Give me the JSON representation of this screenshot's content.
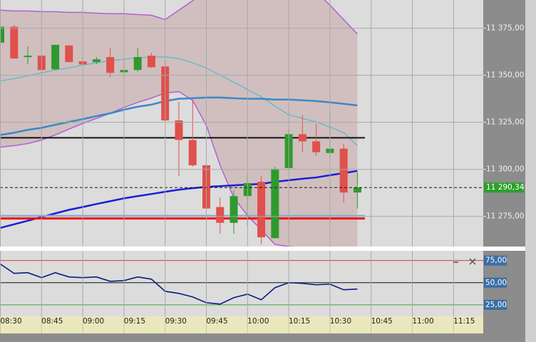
{
  "chart_data": [
    {
      "type": "candlestick",
      "xticks": [
        "08:30",
        "08:45",
        "09:00",
        "09:15",
        "09:30",
        "09:45",
        "10:00",
        "10:15",
        "10:30",
        "10:45",
        "11:00",
        "11:15"
      ],
      "open": [
        11367.3,
        11375.8,
        11359.7,
        11360.4,
        11353.2,
        11365.8,
        11357.4,
        11357.0,
        11359.7,
        11351.6,
        11352.8,
        11360.4,
        11354.7,
        11326.0,
        11315.6,
        11302.2,
        11280.0,
        11271.6,
        11285.8,
        11293.4,
        11263.5,
        11300.7,
        11318.7,
        11314.9,
        11308.7,
        11311.0,
        11287.7
      ],
      "high": [
        11376.9,
        11376.9,
        11365.4,
        11360.4,
        11366.2,
        11366.2,
        11359.7,
        11359.7,
        11364.3,
        11357.8,
        11364.3,
        11362.0,
        11357.8,
        11335.9,
        11336.7,
        11303.0,
        11285.0,
        11288.8,
        11297.6,
        11296.5,
        11301.5,
        11321.4,
        11329.0,
        11324.1,
        11329.8,
        11313.7,
        11298.4
      ],
      "low": [
        11367.3,
        11358.9,
        11355.8,
        11352.8,
        11352.8,
        11357.0,
        11355.8,
        11355.8,
        11349.0,
        11349.0,
        11352.0,
        11353.9,
        11325.2,
        11296.5,
        11301.5,
        11275.4,
        11265.8,
        11265.8,
        11269.7,
        11260.1,
        11263.2,
        11299.9,
        11309.1,
        11307.2,
        11306.1,
        11282.3,
        11279.2
      ],
      "close": [
        11375.8,
        11358.9,
        11360.4,
        11352.8,
        11366.2,
        11357.0,
        11355.8,
        11358.5,
        11351.3,
        11352.8,
        11359.7,
        11354.3,
        11326.0,
        11315.6,
        11302.2,
        11279.2,
        11271.6,
        11285.8,
        11292.7,
        11263.9,
        11300.3,
        11318.7,
        11314.9,
        11309.1,
        11311.0,
        11287.7,
        11290.34
      ],
      "up_color": "#2e9a2e",
      "down_color": "#e0504c",
      "band_fill": "#c9a7a7",
      "series": [
        {
          "color": "#b060d0",
          "values": [
            11384.6,
            11384.2,
            11384.2,
            11383.8,
            11383.8,
            11383.4,
            11383.4,
            11383.0,
            11382.7,
            11382.7,
            11382.3,
            11381.9,
            11379.6,
            11384.6,
            11389.6,
            11394.2,
            11397.2,
            11398.7,
            11399.9,
            11399.9,
            11399.9,
            11398.7,
            11397.2,
            11394.2,
            11387.3,
            11379.6,
            11371.9
          ]
        },
        {
          "color": "#b060d0",
          "values": [
            11311.8,
            11312.6,
            11313.7,
            11315.6,
            11318.3,
            11321.4,
            11324.4,
            11327.1,
            11329.8,
            11332.9,
            11335.6,
            11337.9,
            11340.6,
            11341.3,
            11336.7,
            11323.3,
            11302.2,
            11285.0,
            11275.4,
            11267.8,
            11260.1,
            11259.0,
            11258.2,
            11257.8,
            11257.4,
            11257.0,
            11257.0
          ]
        },
        {
          "color": "#6ab8d0",
          "values": [
            11347.0,
            11348.2,
            11349.7,
            11351.3,
            11352.8,
            11353.9,
            11355.5,
            11356.6,
            11357.8,
            11358.5,
            11359.3,
            11359.7,
            11359.7,
            11358.9,
            11356.6,
            11353.9,
            11350.1,
            11346.3,
            11342.4,
            11338.6,
            11333.6,
            11329.0,
            11327.1,
            11325.2,
            11322.5,
            11319.5,
            11312.6
          ]
        },
        {
          "color": "#3a88c8",
          "values": [
            11318.3,
            11319.5,
            11321.0,
            11322.1,
            11323.7,
            11325.2,
            11326.7,
            11328.3,
            11329.8,
            11331.7,
            11333.3,
            11334.4,
            11336.3,
            11337.5,
            11337.8,
            11338.2,
            11338.2,
            11337.8,
            11337.5,
            11337.5,
            11337.1,
            11337.1,
            11336.7,
            11336.3,
            11335.6,
            11334.8,
            11334.0
          ]
        },
        {
          "color": "#1520d8",
          "values": [
            11268.9,
            11270.8,
            11272.7,
            11274.7,
            11276.6,
            11278.5,
            11280.0,
            11281.6,
            11283.1,
            11284.6,
            11285.8,
            11286.9,
            11288.1,
            11289.2,
            11290.0,
            11290.7,
            11291.1,
            11291.5,
            11291.9,
            11292.3,
            11293.4,
            11294.2,
            11295.0,
            11295.7,
            11296.9,
            11298.0,
            11299.2
          ]
        }
      ],
      "levels": [
        {
          "value": 11316.8,
          "color": "#111111"
        },
        {
          "value": 11275.4,
          "color": "#7fb0e0"
        },
        {
          "value": 11273.9,
          "color": "#ee1111"
        }
      ],
      "last_price": {
        "value": 11290.34,
        "label": "11 290,34",
        "color": "#2ca02c"
      },
      "ylim": [
        11259,
        11390
      ],
      "yticks": [
        {
          "value": 11275,
          "label": "11 275,00"
        },
        {
          "value": 11300,
          "label": "11 300,00"
        },
        {
          "value": 11325,
          "label": "11 325,00"
        },
        {
          "value": 11350,
          "label": "11 350,00"
        },
        {
          "value": 11375,
          "label": "11 375,00"
        }
      ],
      "grid": true
    },
    {
      "type": "line",
      "series": [
        {
          "color": "#0c1a80",
          "values": [
            71.0,
            60.5,
            61.3,
            55.7,
            61.3,
            56.5,
            55.7,
            56.5,
            51.6,
            52.4,
            56.5,
            54.0,
            40.3,
            37.9,
            33.9,
            27.4,
            25.8,
            33.1,
            37.1,
            30.7,
            44.4,
            50.0,
            49.2,
            47.6,
            48.4,
            42.0,
            42.8
          ]
        }
      ],
      "levels": [
        {
          "value": 75,
          "color": "#d04040"
        },
        {
          "value": 50,
          "color": "#111111"
        },
        {
          "value": 25,
          "color": "#40a040"
        }
      ],
      "ylim": [
        12,
        86
      ],
      "yticks": [
        {
          "value": 25,
          "label": "25,00"
        },
        {
          "value": 50,
          "label": "50,00"
        },
        {
          "value": 75,
          "label": "75,00"
        }
      ],
      "tick_color": "#3a6ea5"
    }
  ]
}
